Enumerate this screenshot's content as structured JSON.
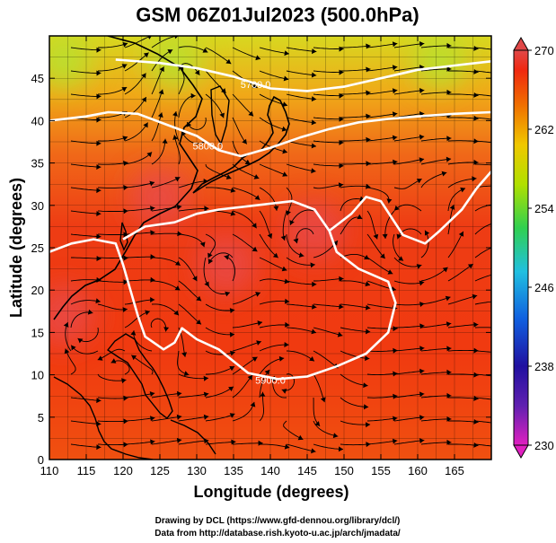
{
  "title": "GSM 06Z01Jul2023 (500.0hPa)",
  "xlabel": "Longitude (degrees)",
  "ylabel": "Latitude  (degrees)",
  "credits": [
    "Drawing by DCL (https://www.gfd-dennou.org/library/dcl/)",
    "Data from http://database.rish.kyoto-u.ac.jp/arch/jmadata/"
  ],
  "chart_data": {
    "type": "heatmap",
    "xlim": [
      110,
      170
    ],
    "ylim": [
      0,
      50
    ],
    "x_ticks": [
      "110",
      "115",
      "120",
      "125",
      "130",
      "135",
      "140",
      "145",
      "150",
      "155",
      "160",
      "165"
    ],
    "y_ticks": [
      "0",
      "5",
      "10",
      "15",
      "20",
      "25",
      "30",
      "35",
      "40",
      "45"
    ],
    "grid": true,
    "colorbar": {
      "ticks": [
        "230",
        "238",
        "246",
        "254",
        "262",
        "270"
      ],
      "range": [
        230,
        270
      ],
      "colors": [
        "#e020c0",
        "#3010a0",
        "#1060e0",
        "#20c0e0",
        "#30d050",
        "#b0e000",
        "#f0d000",
        "#f08000",
        "#f03000",
        "#e04040"
      ]
    },
    "contours": [
      {
        "label": "5700.0",
        "points": [
          [
            119,
            47.2
          ],
          [
            125,
            46.8
          ],
          [
            130,
            46.2
          ],
          [
            135,
            45.2
          ],
          [
            140,
            43.8
          ],
          [
            145,
            43.5
          ],
          [
            150,
            44.0
          ],
          [
            155,
            45.0
          ],
          [
            160,
            46.0
          ],
          [
            165,
            46.5
          ],
          [
            170,
            47.0
          ]
        ]
      },
      {
        "label": "5800.0",
        "points": [
          [
            110,
            40.0
          ],
          [
            115,
            40.5
          ],
          [
            118,
            41.0
          ],
          [
            122,
            40.8
          ],
          [
            126,
            39.5
          ],
          [
            130,
            38.2
          ],
          [
            133,
            36.5
          ],
          [
            136,
            35.8
          ],
          [
            140,
            36.8
          ],
          [
            144,
            38.0
          ],
          [
            148,
            39.0
          ],
          [
            152,
            39.8
          ],
          [
            156,
            40.2
          ],
          [
            160,
            40.5
          ],
          [
            165,
            40.8
          ],
          [
            170,
            41.0
          ]
        ]
      },
      {
        "label": "5900.0",
        "points": [
          [
            110,
            24.5
          ],
          [
            113,
            25.5
          ],
          [
            116,
            26.0
          ],
          [
            119,
            25.5
          ],
          [
            120,
            23.0
          ],
          [
            121,
            20.0
          ],
          [
            122,
            17.0
          ],
          [
            123,
            14.5
          ],
          [
            125.5,
            13.0
          ],
          [
            127,
            13.8
          ],
          [
            128,
            15.5
          ],
          [
            130,
            14.2
          ],
          [
            133,
            13.0
          ],
          [
            137,
            10.2
          ],
          [
            141,
            9.5
          ],
          [
            145,
            9.8
          ],
          [
            149,
            11.0
          ],
          [
            153,
            12.5
          ],
          [
            156,
            15.0
          ],
          [
            157,
            18.5
          ],
          [
            156,
            21.0
          ],
          [
            152,
            22.5
          ],
          [
            149,
            24.5
          ],
          [
            148,
            27.0
          ],
          [
            146,
            29.5
          ],
          [
            143,
            30.5
          ],
          [
            138,
            30.0
          ],
          [
            133,
            29.5
          ],
          [
            130,
            29.0
          ],
          [
            127,
            28.0
          ],
          [
            123,
            27.5
          ],
          [
            120,
            26.0
          ]
        ]
      },
      {
        "label": "",
        "points": [
          [
            148,
            27.0
          ],
          [
            151,
            29.0
          ],
          [
            153,
            31.0
          ],
          [
            155,
            30.5
          ],
          [
            158,
            26.5
          ],
          [
            161,
            25.5
          ],
          [
            163,
            27.0
          ],
          [
            166,
            29.5
          ],
          [
            168,
            32.0
          ],
          [
            170,
            34.0
          ]
        ]
      }
    ],
    "warm_centers": [
      {
        "lon": 112,
        "lat": 17,
        "value": 270
      },
      {
        "lon": 125,
        "lat": 31,
        "value": 270
      },
      {
        "lon": 146,
        "lat": 27,
        "value": 268
      },
      {
        "lon": 134,
        "lat": 23,
        "value": 267
      }
    ],
    "cool_centers": [
      {
        "lon": 127,
        "lat": 47,
        "value": 258
      },
      {
        "lon": 112,
        "lat": 47,
        "value": 260
      },
      {
        "lon": 163,
        "lat": 47,
        "value": 261
      }
    ]
  }
}
